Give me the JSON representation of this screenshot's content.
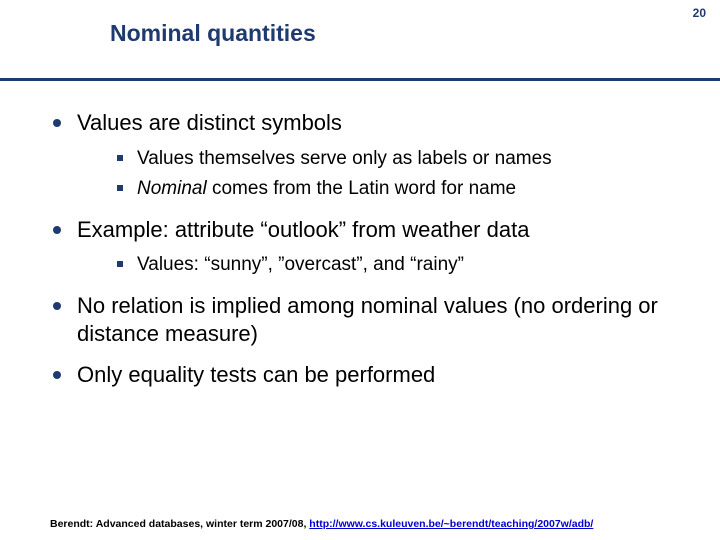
{
  "page_number": "20",
  "title": "Nominal quantities",
  "colors": {
    "accent": "#1f3a6e",
    "text": "#000000",
    "link": "#0000cc",
    "background": "#ffffff"
  },
  "typography": {
    "title_fontsize": 23,
    "level1_fontsize": 22,
    "level2_fontsize": 19,
    "footer_fontsize": 10.5,
    "font_family": "Arial"
  },
  "bullets": {
    "b1": "Values are distinct symbols",
    "b1_1": "Values themselves serve only as labels or names",
    "b1_2_italic": "Nominal",
    "b1_2_rest": " comes from the Latin word for name",
    "b2": "Example: attribute “outlook” from weather data",
    "b2_1": "Values: “sunny”, ”overcast”, and “rainy”",
    "b3": "No relation is implied among nominal values (no ordering or distance measure)",
    "b4": "Only equality tests can be performed"
  },
  "footer": {
    "prefix": "Berendt: Advanced databases, winter term 2007/08, ",
    "link": "http://www.cs.kuleuven.be/~berendt/teaching/2007w/adb/"
  }
}
